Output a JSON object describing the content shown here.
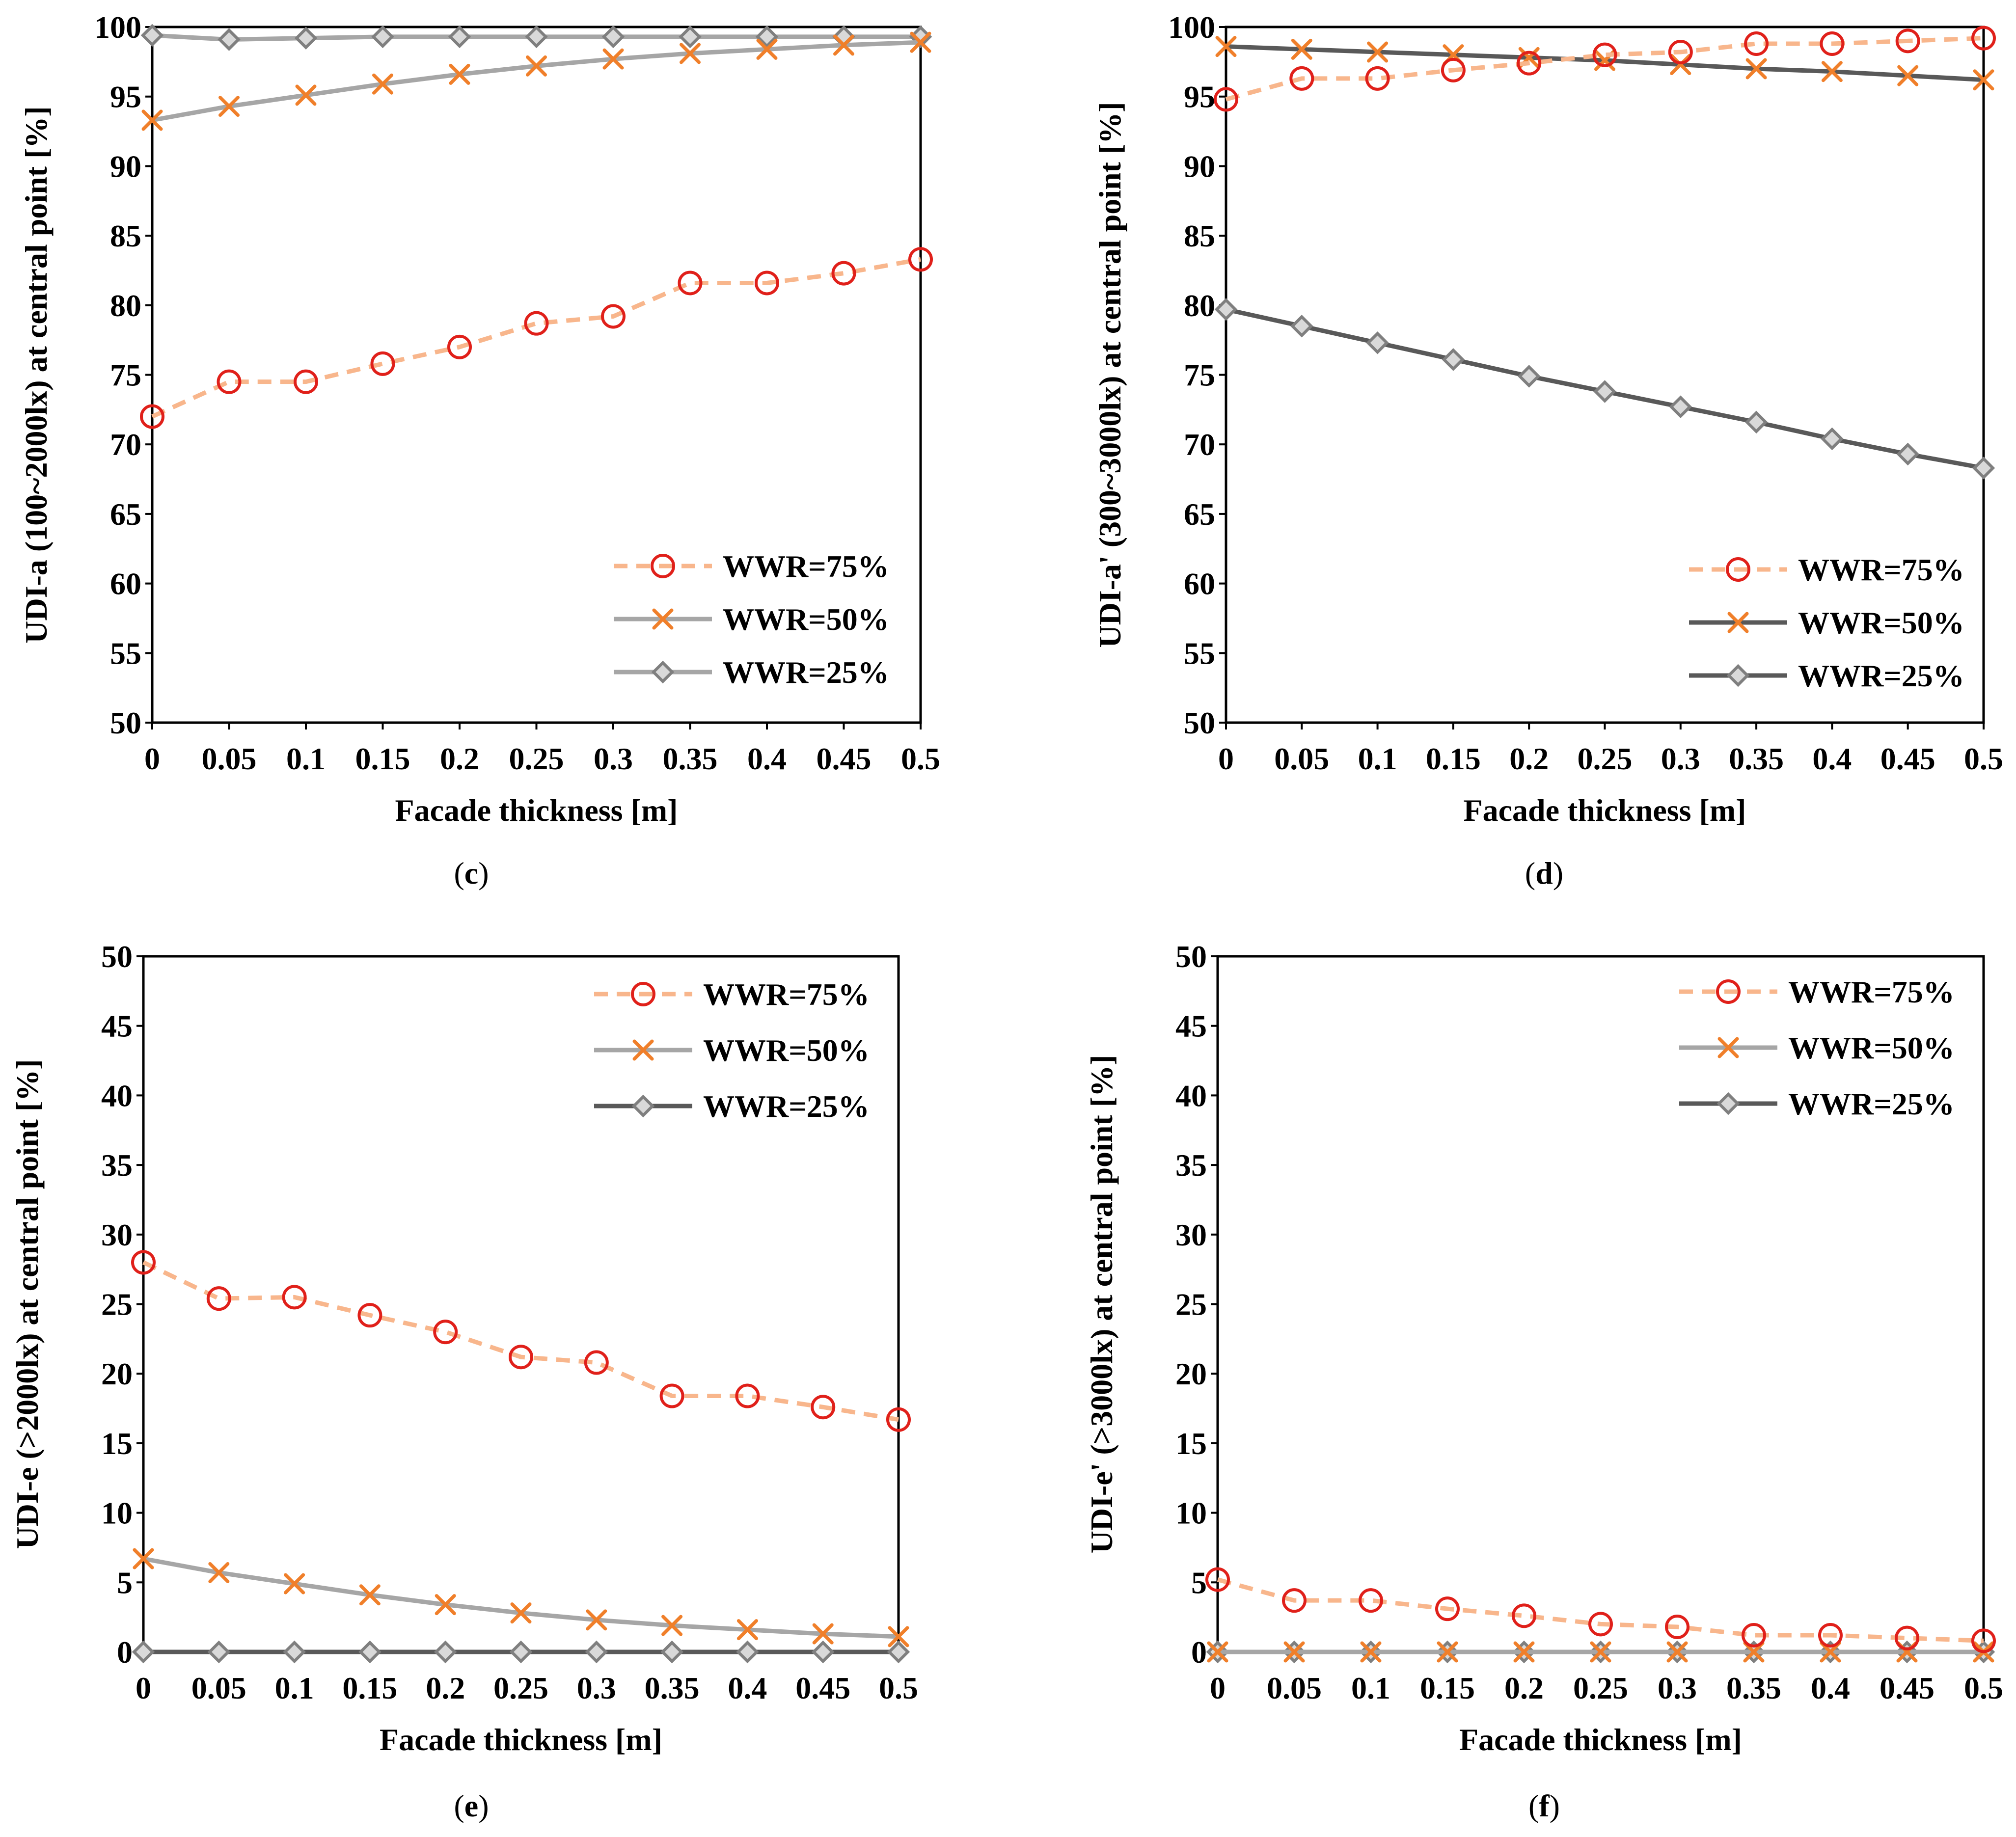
{
  "colors": {
    "wwr75_line": "#F8B68C",
    "wwr75_marker": "#E0201A",
    "wwr50_marker": "#F07F2A",
    "light_gray": "#A6A6A6",
    "dark_gray": "#595959",
    "marker_edge": "#7F7F7F",
    "marker_fill": "#D9D9D9"
  },
  "chart_data": [
    {
      "id": "c",
      "type": "line",
      "caption_letter": "c",
      "xlabel": "Facade thickness [m]",
      "ylabel": "UDI-a (100~2000lx) at central point [%]",
      "x": [
        0,
        0.05,
        0.1,
        0.15,
        0.2,
        0.25,
        0.3,
        0.35,
        0.4,
        0.45,
        0.5
      ],
      "x_tick_labels": [
        "0",
        "0.05",
        "0.1",
        "0.15",
        "0.2",
        "0.25",
        "0.3",
        "0.35",
        "0.4",
        "0.45",
        "0.5"
      ],
      "ylim": [
        50,
        100
      ],
      "y_ticks": [
        50,
        55,
        60,
        65,
        70,
        75,
        80,
        85,
        90,
        95,
        100
      ],
      "legend_position": "bottom-right",
      "series": [
        {
          "name": "WWR=75%",
          "style": "wwr75",
          "values": [
            72.0,
            74.5,
            74.5,
            75.8,
            77.0,
            78.7,
            79.2,
            81.6,
            81.6,
            82.3,
            83.3
          ]
        },
        {
          "name": "WWR=50%",
          "style": "wwr50_light",
          "values": [
            93.3,
            94.3,
            95.1,
            95.9,
            96.6,
            97.2,
            97.7,
            98.1,
            98.4,
            98.7,
            98.9
          ]
        },
        {
          "name": "WWR=25%",
          "style": "wwr25_light",
          "values": [
            99.4,
            99.1,
            99.2,
            99.3,
            99.3,
            99.3,
            99.3,
            99.3,
            99.3,
            99.3,
            99.3
          ]
        }
      ]
    },
    {
      "id": "d",
      "type": "line",
      "caption_letter": "d",
      "xlabel": "Facade thickness [m]",
      "ylabel": "UDI-a' (300~3000lx) at central point [%]",
      "x": [
        0,
        0.05,
        0.1,
        0.15,
        0.2,
        0.25,
        0.3,
        0.35,
        0.4,
        0.45,
        0.5
      ],
      "x_tick_labels": [
        "0",
        "0.05",
        "0.1",
        "0.15",
        "0.2",
        "0.25",
        "0.3",
        "0.35",
        "0.4",
        "0.45",
        "0.5"
      ],
      "ylim": [
        50,
        100
      ],
      "y_ticks": [
        50,
        55,
        60,
        65,
        70,
        75,
        80,
        85,
        90,
        95,
        100
      ],
      "legend_position": "bottom-right",
      "series": [
        {
          "name": "WWR=75%",
          "style": "wwr75",
          "values": [
            94.8,
            96.3,
            96.3,
            96.9,
            97.4,
            98.0,
            98.2,
            98.8,
            98.8,
            99.0,
            99.2
          ]
        },
        {
          "name": "WWR=50%",
          "style": "wwr50_dark",
          "values": [
            98.6,
            98.4,
            98.2,
            98.0,
            97.8,
            97.6,
            97.3,
            97.0,
            96.8,
            96.5,
            96.2
          ]
        },
        {
          "name": "WWR=25%",
          "style": "wwr25_dark",
          "values": [
            79.7,
            78.5,
            77.3,
            76.1,
            74.9,
            73.8,
            72.7,
            71.6,
            70.4,
            69.3,
            68.3
          ]
        }
      ]
    },
    {
      "id": "e",
      "type": "line",
      "caption_letter": "e",
      "xlabel": "Facade thickness [m]",
      "ylabel": "UDI-e (>2000lx) at central point [%]",
      "x": [
        0,
        0.05,
        0.1,
        0.15,
        0.2,
        0.25,
        0.3,
        0.35,
        0.4,
        0.45,
        0.5
      ],
      "x_tick_labels": [
        "0",
        "0.05",
        "0.1",
        "0.15",
        "0.2",
        "0.25",
        "0.3",
        "0.35",
        "0.4",
        "0.45",
        "0.5"
      ],
      "ylim": [
        0,
        50
      ],
      "y_ticks": [
        0,
        5,
        10,
        15,
        20,
        25,
        30,
        35,
        40,
        45,
        50
      ],
      "legend_position": "top-right",
      "series": [
        {
          "name": "WWR=75%",
          "style": "wwr75",
          "values": [
            28.0,
            25.4,
            25.5,
            24.2,
            23.0,
            21.2,
            20.8,
            18.4,
            18.4,
            17.6,
            16.7
          ]
        },
        {
          "name": "WWR=50%",
          "style": "wwr50_light",
          "values": [
            6.7,
            5.7,
            4.9,
            4.1,
            3.4,
            2.8,
            2.3,
            1.9,
            1.6,
            1.3,
            1.1
          ]
        },
        {
          "name": "WWR=25%",
          "style": "wwr25_dark",
          "values": [
            0,
            0,
            0,
            0,
            0,
            0,
            0,
            0,
            0,
            0,
            0
          ]
        }
      ]
    },
    {
      "id": "f",
      "type": "line",
      "caption_letter": "f",
      "xlabel": "Facade thickness [m]",
      "ylabel": "UDI-e' (>3000lx) at central point [%]",
      "x": [
        0,
        0.05,
        0.1,
        0.15,
        0.2,
        0.25,
        0.3,
        0.35,
        0.4,
        0.45,
        0.5
      ],
      "x_tick_labels": [
        "0",
        "0.05",
        "0.1",
        "0.15",
        "0.2",
        "0.25",
        "0.3",
        "0.35",
        "0.4",
        "0.45",
        "0.5"
      ],
      "ylim": [
        0,
        50
      ],
      "y_ticks": [
        0,
        5,
        10,
        15,
        20,
        25,
        30,
        35,
        40,
        45,
        50
      ],
      "legend_position": "top-right",
      "series": [
        {
          "name": "WWR=75%",
          "style": "wwr75",
          "values": [
            5.2,
            3.7,
            3.7,
            3.1,
            2.6,
            2.0,
            1.8,
            1.2,
            1.2,
            1.0,
            0.8
          ]
        },
        {
          "name": "WWR=50%",
          "style": "wwr50_light",
          "values": [
            0,
            0,
            0,
            0,
            0,
            0,
            0,
            0,
            0,
            0,
            0
          ]
        },
        {
          "name": "WWR=25%",
          "style": "wwr25_dark",
          "values": [
            0,
            0,
            0,
            0,
            0,
            0,
            0,
            0,
            0,
            0,
            0
          ]
        }
      ]
    }
  ]
}
